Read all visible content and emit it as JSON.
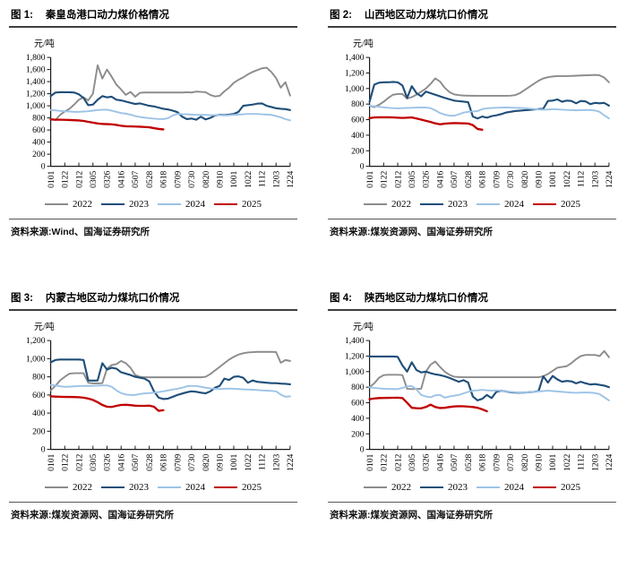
{
  "page": {
    "background": "#ffffff"
  },
  "chart_data": [
    {
      "figure_label": "图 1:",
      "title": "秦皇岛港口动力煤价格情况",
      "unit": "元/吨",
      "source": "资料来源:Wind、国海证券研究所",
      "type": "line",
      "grid": false,
      "legend_position": "bottom",
      "ylim": [
        0,
        1800
      ],
      "ytick_step": 200,
      "samples_per_label": 3,
      "categories": [
        "0101",
        "0122",
        "0212",
        "0305",
        "0326",
        "0416",
        "0507",
        "0528",
        "0618",
        "0709",
        "0730",
        "0820",
        "0910",
        "1001",
        "1022",
        "1112",
        "1203",
        "1224"
      ],
      "series": [
        {
          "name": "2022",
          "color": "#8c8c8c",
          "width": 1.9,
          "values": [
            780,
            765,
            850,
            905,
            950,
            1020,
            1100,
            1140,
            1090,
            1200,
            1670,
            1450,
            1600,
            1480,
            1350,
            1270,
            1180,
            1230,
            1150,
            1215,
            1220,
            1220,
            1220,
            1220,
            1220,
            1220,
            1220,
            1220,
            1220,
            1225,
            1220,
            1235,
            1230,
            1225,
            1180,
            1155,
            1165,
            1240,
            1300,
            1380,
            1430,
            1470,
            1520,
            1560,
            1590,
            1620,
            1630,
            1560,
            1460,
            1300,
            1390,
            1170
          ]
        },
        {
          "name": "2023",
          "color": "#1f4e79",
          "width": 2.1,
          "values": [
            1160,
            1220,
            1225,
            1225,
            1225,
            1220,
            1190,
            1130,
            1010,
            1020,
            1100,
            1160,
            1140,
            1150,
            1100,
            1090,
            1070,
            1050,
            1030,
            1040,
            1020,
            1000,
            990,
            970,
            950,
            940,
            920,
            895,
            820,
            780,
            790,
            770,
            820,
            775,
            800,
            840,
            850,
            845,
            855,
            865,
            900,
            1000,
            1010,
            1020,
            1035,
            1040,
            1000,
            980,
            960,
            950,
            945,
            930
          ]
        },
        {
          "name": "2024",
          "color": "#9dc3e6",
          "width": 1.9,
          "values": [
            930,
            925,
            915,
            910,
            905,
            900,
            900,
            905,
            910,
            920,
            930,
            935,
            935,
            920,
            900,
            880,
            870,
            855,
            830,
            815,
            805,
            795,
            788,
            782,
            780,
            795,
            840,
            865,
            860,
            860,
            855,
            850,
            850,
            850,
            845,
            845,
            845,
            840,
            845,
            850,
            855,
            860,
            865,
            865,
            865,
            860,
            855,
            850,
            830,
            810,
            780,
            760
          ]
        },
        {
          "name": "2025",
          "color": "#c00000",
          "width": 2.3,
          "values": [
            775,
            770,
            770,
            768,
            765,
            762,
            758,
            750,
            735,
            722,
            708,
            700,
            697,
            694,
            684,
            670,
            662,
            660,
            657,
            654,
            650,
            645,
            630,
            617,
            610
          ]
        }
      ]
    },
    {
      "figure_label": "图 2:",
      "title": "山西地区动力煤坑口价情况",
      "unit": "元/吨",
      "source": "资料来源:煤炭资源网、国海证券研究所",
      "type": "line",
      "grid": false,
      "legend_position": "bottom",
      "ylim": [
        0,
        1400
      ],
      "ytick_step": 200,
      "samples_per_label": 3,
      "categories": [
        "0101",
        "0122",
        "0212",
        "0305",
        "0326",
        "0416",
        "0507",
        "0528",
        "0618",
        "0709",
        "0730",
        "0820",
        "0910",
        "1001",
        "1022",
        "1112",
        "1203",
        "1224"
      ],
      "series": [
        {
          "name": "2022",
          "color": "#8c8c8c",
          "width": 1.9,
          "values": [
            780,
            760,
            790,
            830,
            880,
            920,
            930,
            930,
            870,
            890,
            920,
            960,
            1000,
            1060,
            1130,
            1090,
            1010,
            955,
            925,
            915,
            910,
            908,
            907,
            906,
            906,
            906,
            906,
            906,
            906,
            906,
            908,
            915,
            940,
            980,
            1020,
            1060,
            1100,
            1130,
            1145,
            1155,
            1160,
            1160,
            1160,
            1162,
            1165,
            1168,
            1170,
            1172,
            1175,
            1170,
            1140,
            1080
          ]
        },
        {
          "name": "2023",
          "color": "#1f4e79",
          "width": 2.1,
          "values": [
            830,
            1050,
            1075,
            1080,
            1080,
            1085,
            1080,
            1040,
            880,
            1030,
            940,
            900,
            960,
            940,
            920,
            900,
            880,
            862,
            845,
            838,
            832,
            825,
            640,
            615,
            640,
            625,
            645,
            655,
            670,
            690,
            700,
            710,
            715,
            720,
            725,
            730,
            735,
            740,
            840,
            845,
            860,
            830,
            845,
            840,
            810,
            840,
            835,
            800,
            815,
            810,
            815,
            780
          ]
        },
        {
          "name": "2024",
          "color": "#9dc3e6",
          "width": 1.9,
          "values": [
            780,
            772,
            765,
            758,
            752,
            748,
            745,
            748,
            750,
            752,
            755,
            756,
            755,
            748,
            720,
            685,
            665,
            652,
            650,
            668,
            690,
            700,
            705,
            710,
            735,
            745,
            750,
            752,
            755,
            756,
            755,
            752,
            750,
            748,
            742,
            736,
            730,
            728,
            730,
            735,
            732,
            728,
            725,
            722,
            720,
            722,
            724,
            722,
            718,
            700,
            655,
            615
          ]
        },
        {
          "name": "2025",
          "color": "#c00000",
          "width": 2.3,
          "values": [
            620,
            628,
            630,
            630,
            630,
            628,
            625,
            622,
            625,
            628,
            615,
            600,
            585,
            570,
            552,
            540,
            548,
            553,
            555,
            554,
            552,
            550,
            530,
            480,
            470
          ]
        }
      ]
    },
    {
      "figure_label": "图 3:",
      "title": "内蒙古地区动力煤坑口价情况",
      "unit": "元/吨",
      "source": "资料来源:煤炭资源网、国海证券研究所",
      "type": "line",
      "grid": false,
      "legend_position": "bottom",
      "ylim": [
        0,
        1200
      ],
      "ytick_step": 200,
      "samples_per_label": 3,
      "categories": [
        "0101",
        "0122",
        "0212",
        "0305",
        "0326",
        "0416",
        "0507",
        "0528",
        "0618",
        "0709",
        "0730",
        "0820",
        "0910",
        "1001",
        "1022",
        "1112",
        "1203",
        "1224"
      ],
      "series": [
        {
          "name": "2022",
          "color": "#8c8c8c",
          "width": 1.9,
          "values": [
            650,
            700,
            760,
            800,
            835,
            840,
            840,
            840,
            735,
            728,
            728,
            730,
            890,
            930,
            940,
            975,
            950,
            900,
            820,
            800,
            795,
            795,
            795,
            795,
            795,
            795,
            795,
            795,
            795,
            795,
            795,
            795,
            795,
            800,
            830,
            870,
            910,
            950,
            990,
            1020,
            1045,
            1060,
            1068,
            1072,
            1075,
            1075,
            1075,
            1075,
            1073,
            955,
            985,
            975
          ]
        },
        {
          "name": "2023",
          "color": "#1f4e79",
          "width": 2.1,
          "values": [
            960,
            985,
            990,
            990,
            990,
            990,
            990,
            985,
            760,
            758,
            760,
            950,
            880,
            900,
            890,
            850,
            835,
            820,
            800,
            790,
            780,
            750,
            640,
            570,
            555,
            560,
            580,
            600,
            615,
            630,
            640,
            635,
            625,
            618,
            640,
            680,
            700,
            780,
            765,
            800,
            805,
            790,
            735,
            760,
            745,
            740,
            735,
            730,
            730,
            725,
            722,
            718
          ]
        },
        {
          "name": "2024",
          "color": "#9dc3e6",
          "width": 1.9,
          "values": [
            710,
            705,
            695,
            690,
            692,
            695,
            698,
            700,
            700,
            700,
            702,
            705,
            705,
            690,
            650,
            620,
            605,
            600,
            600,
            610,
            618,
            620,
            625,
            632,
            640,
            650,
            660,
            668,
            680,
            695,
            700,
            698,
            690,
            680,
            672,
            668,
            665,
            668,
            670,
            668,
            665,
            662,
            660,
            658,
            655,
            650,
            648,
            645,
            640,
            605,
            580,
            585
          ]
        },
        {
          "name": "2025",
          "color": "#c00000",
          "width": 2.3,
          "values": [
            585,
            582,
            580,
            578,
            578,
            577,
            575,
            570,
            560,
            545,
            520,
            490,
            470,
            468,
            480,
            490,
            492,
            488,
            482,
            480,
            480,
            482,
            470,
            425,
            432
          ]
        }
      ]
    },
    {
      "figure_label": "图 4:",
      "title": "陕西地区动力煤坑口价情况",
      "unit": "元/吨",
      "source": "资料来源:煤炭资源网、国海证券研究所",
      "type": "line",
      "grid": false,
      "legend_position": "bottom",
      "ylim": [
        0,
        1400
      ],
      "ytick_step": 200,
      "samples_per_label": 3,
      "categories": [
        "0101",
        "0122",
        "0212",
        "0305",
        "0326",
        "0416",
        "0507",
        "0528",
        "0618",
        "0709",
        "0730",
        "0820",
        "0910",
        "1001",
        "1022",
        "1112",
        "1203",
        "1224"
      ],
      "series": [
        {
          "name": "2022",
          "color": "#8c8c8c",
          "width": 1.9,
          "values": [
            800,
            850,
            920,
            955,
            960,
            960,
            960,
            955,
            780,
            775,
            778,
            780,
            1000,
            1090,
            1130,
            1060,
            1000,
            960,
            935,
            930,
            928,
            928,
            928,
            928,
            928,
            928,
            928,
            928,
            928,
            928,
            928,
            928,
            928,
            928,
            928,
            928,
            928,
            940,
            970,
            1010,
            1050,
            1060,
            1070,
            1110,
            1160,
            1200,
            1215,
            1215,
            1215,
            1200,
            1265,
            1185
          ]
        },
        {
          "name": "2023",
          "color": "#1f4e79",
          "width": 2.1,
          "values": [
            1195,
            1195,
            1195,
            1195,
            1195,
            1195,
            1190,
            1080,
            1000,
            1120,
            1020,
            990,
            1000,
            980,
            965,
            955,
            940,
            920,
            895,
            870,
            890,
            860,
            680,
            630,
            650,
            700,
            660,
            740,
            755,
            745,
            735,
            730,
            728,
            730,
            735,
            740,
            750,
            940,
            860,
            945,
            900,
            870,
            880,
            875,
            850,
            870,
            850,
            835,
            840,
            830,
            820,
            800
          ]
        },
        {
          "name": "2024",
          "color": "#9dc3e6",
          "width": 1.9,
          "values": [
            800,
            790,
            785,
            780,
            778,
            776,
            775,
            790,
            810,
            815,
            770,
            700,
            680,
            670,
            695,
            700,
            665,
            680,
            690,
            700,
            720,
            740,
            755,
            760,
            765,
            760,
            755,
            760,
            755,
            745,
            740,
            735,
            730,
            730,
            735,
            740,
            745,
            750,
            755,
            750,
            745,
            740,
            735,
            730,
            728,
            730,
            732,
            730,
            725,
            710,
            670,
            630
          ]
        },
        {
          "name": "2025",
          "color": "#c00000",
          "width": 2.3,
          "values": [
            645,
            655,
            660,
            662,
            663,
            664,
            665,
            660,
            600,
            535,
            530,
            528,
            545,
            575,
            545,
            532,
            535,
            545,
            552,
            555,
            554,
            550,
            545,
            535,
            515,
            490
          ]
        }
      ]
    }
  ]
}
